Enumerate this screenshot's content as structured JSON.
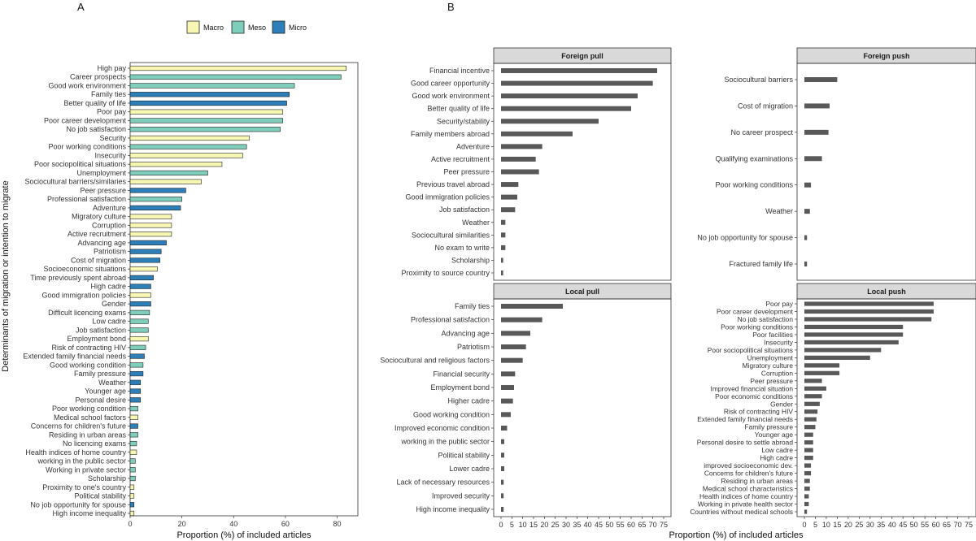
{
  "chart_data": [
    {
      "type": "bar",
      "orientation": "horizontal",
      "panel_label": "A",
      "xlabel": "Proportion (%) of included articles",
      "ylabel": "Determinants of migration or intention to migrate",
      "xlim": [
        0,
        88
      ],
      "xticks": [
        0,
        20,
        40,
        60,
        80
      ],
      "legend": {
        "placement": "top",
        "entries": [
          {
            "name": "Macro",
            "color": "#f7f7b3"
          },
          {
            "name": "Meso",
            "color": "#7fcdbb"
          },
          {
            "name": "Micro",
            "color": "#2c7fb8"
          }
        ]
      },
      "categories": [
        "High pay",
        "Career prospects",
        "Good work environment",
        "Family ties",
        "Better quality of life",
        "Poor pay",
        "Poor career  development",
        "No job satisfaction",
        "Security",
        "Poor working conditions",
        "Insecurity",
        "Poor sociopolitical situations",
        "Unemployment",
        "Sociocultural barriers/similaries",
        "Peer pressure",
        "Professional satisfaction",
        "Adventure",
        "Migratory culture",
        "Corruption",
        "Active recruitment",
        "Advancing age",
        "Patriotism",
        "Cost of migration",
        "Socioeconomic situations",
        "Time previously spent abroad",
        "High cadre",
        "Good immigration policies",
        "Gender",
        "Difficult licencing exams",
        "Low cadre",
        "Job satisfaction",
        "Employment bond",
        "Risk of contracting HIV",
        "Extended family financial needs",
        "Good working condition",
        "Family pressure",
        "Weather",
        "Younger age",
        "Personal desire",
        "Poor working condition",
        "Medical school factors",
        "Concerns for children's future",
        "Residing in urban areas",
        "No licencing exams",
        "Health indices of home country",
        "working in the public sector",
        "Working in private sector",
        "Scholarship",
        "Proximity to one's country",
        "Political stability",
        "No job opportunity for spouse",
        "High income inequality"
      ],
      "values": [
        83.5,
        81.5,
        63.5,
        61.5,
        60.5,
        59,
        59,
        58,
        46,
        45,
        43.5,
        35.5,
        30,
        27.5,
        21.5,
        20,
        19.5,
        16,
        16,
        16,
        14,
        12,
        11.5,
        10.5,
        9,
        8,
        8,
        8,
        7.5,
        7,
        7,
        7,
        6,
        5.5,
        5,
        5,
        4,
        4,
        4,
        3,
        3,
        3,
        3,
        2.5,
        2.5,
        2,
        2,
        2,
        1.5,
        1.5,
        1.5,
        1.5
      ],
      "levels": [
        "Macro",
        "Meso",
        "Meso",
        "Micro",
        "Micro",
        "Macro",
        "Meso",
        "Meso",
        "Macro",
        "Meso",
        "Macro",
        "Macro",
        "Meso",
        "Macro",
        "Micro",
        "Meso",
        "Micro",
        "Macro",
        "Macro",
        "Macro",
        "Micro",
        "Micro",
        "Micro",
        "Macro",
        "Micro",
        "Micro",
        "Macro",
        "Micro",
        "Meso",
        "Meso",
        "Meso",
        "Macro",
        "Meso",
        "Micro",
        "Meso",
        "Micro",
        "Micro",
        "Micro",
        "Micro",
        "Meso",
        "Macro",
        "Micro",
        "Meso",
        "Meso",
        "Macro",
        "Meso",
        "Meso",
        "Meso",
        "Macro",
        "Macro",
        "Micro",
        "Macro"
      ]
    },
    {
      "type": "bar",
      "orientation": "horizontal",
      "panel_label": "B",
      "xlabel": "Proportion (%) of included articles",
      "xlim": [
        0,
        75
      ],
      "xticks": [
        0,
        5,
        10,
        15,
        20,
        25,
        30,
        35,
        40,
        45,
        50,
        55,
        60,
        65,
        70,
        75
      ],
      "facets": [
        {
          "title": "Foreign pull",
          "categories": [
            "Financial incentive",
            "Good career opportunity",
            "Good work environment",
            "Better quality of life",
            "Security/stability",
            "Family members abroad",
            "Adventure",
            "Active recruitment",
            "Peer pressure",
            "Previous travel abroad",
            "Good immigration policies",
            "Job satisfaction",
            "Weather",
            "Sociocultural similarities",
            "No exam to write",
            "Scholarship",
            "Proximity to source country"
          ],
          "values": [
            72,
            70,
            63,
            60,
            45,
            33,
            19,
            16,
            17.5,
            8,
            7.5,
            6.5,
            2,
            2,
            2,
            1,
            1
          ]
        },
        {
          "title": "Foreign push",
          "categories": [
            "Sociocultural barriers",
            "Cost of migration",
            "No career prospect",
            "Qualifying examinations",
            "Poor working conditions",
            "Weather",
            "No job opportunity for spouse",
            "Fractured family life"
          ],
          "values": [
            15,
            11.5,
            11,
            8,
            3,
            2.5,
            1.2,
            1.2
          ]
        },
        {
          "title": "Local pull",
          "categories": [
            "Family ties",
            "Professional satisfaction",
            "Advancing age",
            "Patriotism",
            "Sociocultural and religious factors",
            "Financial security",
            "Employment bond",
            "Higher cadre",
            "Good working condition",
            "Improved economic condition",
            "working in the public sector",
            "Political stability",
            "Lower cadre",
            "Lack of necessary resources",
            "Improved security",
            "High income inequality"
          ],
          "values": [
            28.5,
            19,
            13.5,
            11.5,
            10,
            6.5,
            6,
            5.5,
            4.5,
            2.8,
            1.5,
            1.5,
            1.5,
            1.2,
            1.2,
            1.2
          ]
        },
        {
          "title": "Local push",
          "categories": [
            "Poor pay",
            "Poor career  development",
            "No job satisfaction",
            "Poor working conditions",
            "Poor facilities",
            "Insecurity",
            "Poor sociopolitical situations",
            "Unemployment",
            "Migratory culture",
            "Corruption",
            "Peer pressure",
            "Improved financial situation",
            "Poor economic conditions",
            "Gender",
            "Risk of contracting HIV",
            "Extended family financial needs",
            "Family pressure",
            "Younger age",
            "Personal desire to settle abroad",
            "Low cadre",
            "High cadre",
            "improved socioeconomic dev.",
            "Concerns for children's future",
            "Residing in urban areas",
            "Medical school characteristics",
            "Health indices of home country",
            "Working in private health sector",
            "Countries without medical schools"
          ],
          "values": [
            59,
            59,
            58,
            45,
            45,
            43,
            35,
            30,
            16,
            16,
            8,
            10,
            8,
            7,
            6,
            5.5,
            5,
            4,
            4,
            4,
            4,
            3,
            3,
            2.5,
            2.5,
            2,
            2,
            1.2
          ]
        }
      ]
    }
  ]
}
